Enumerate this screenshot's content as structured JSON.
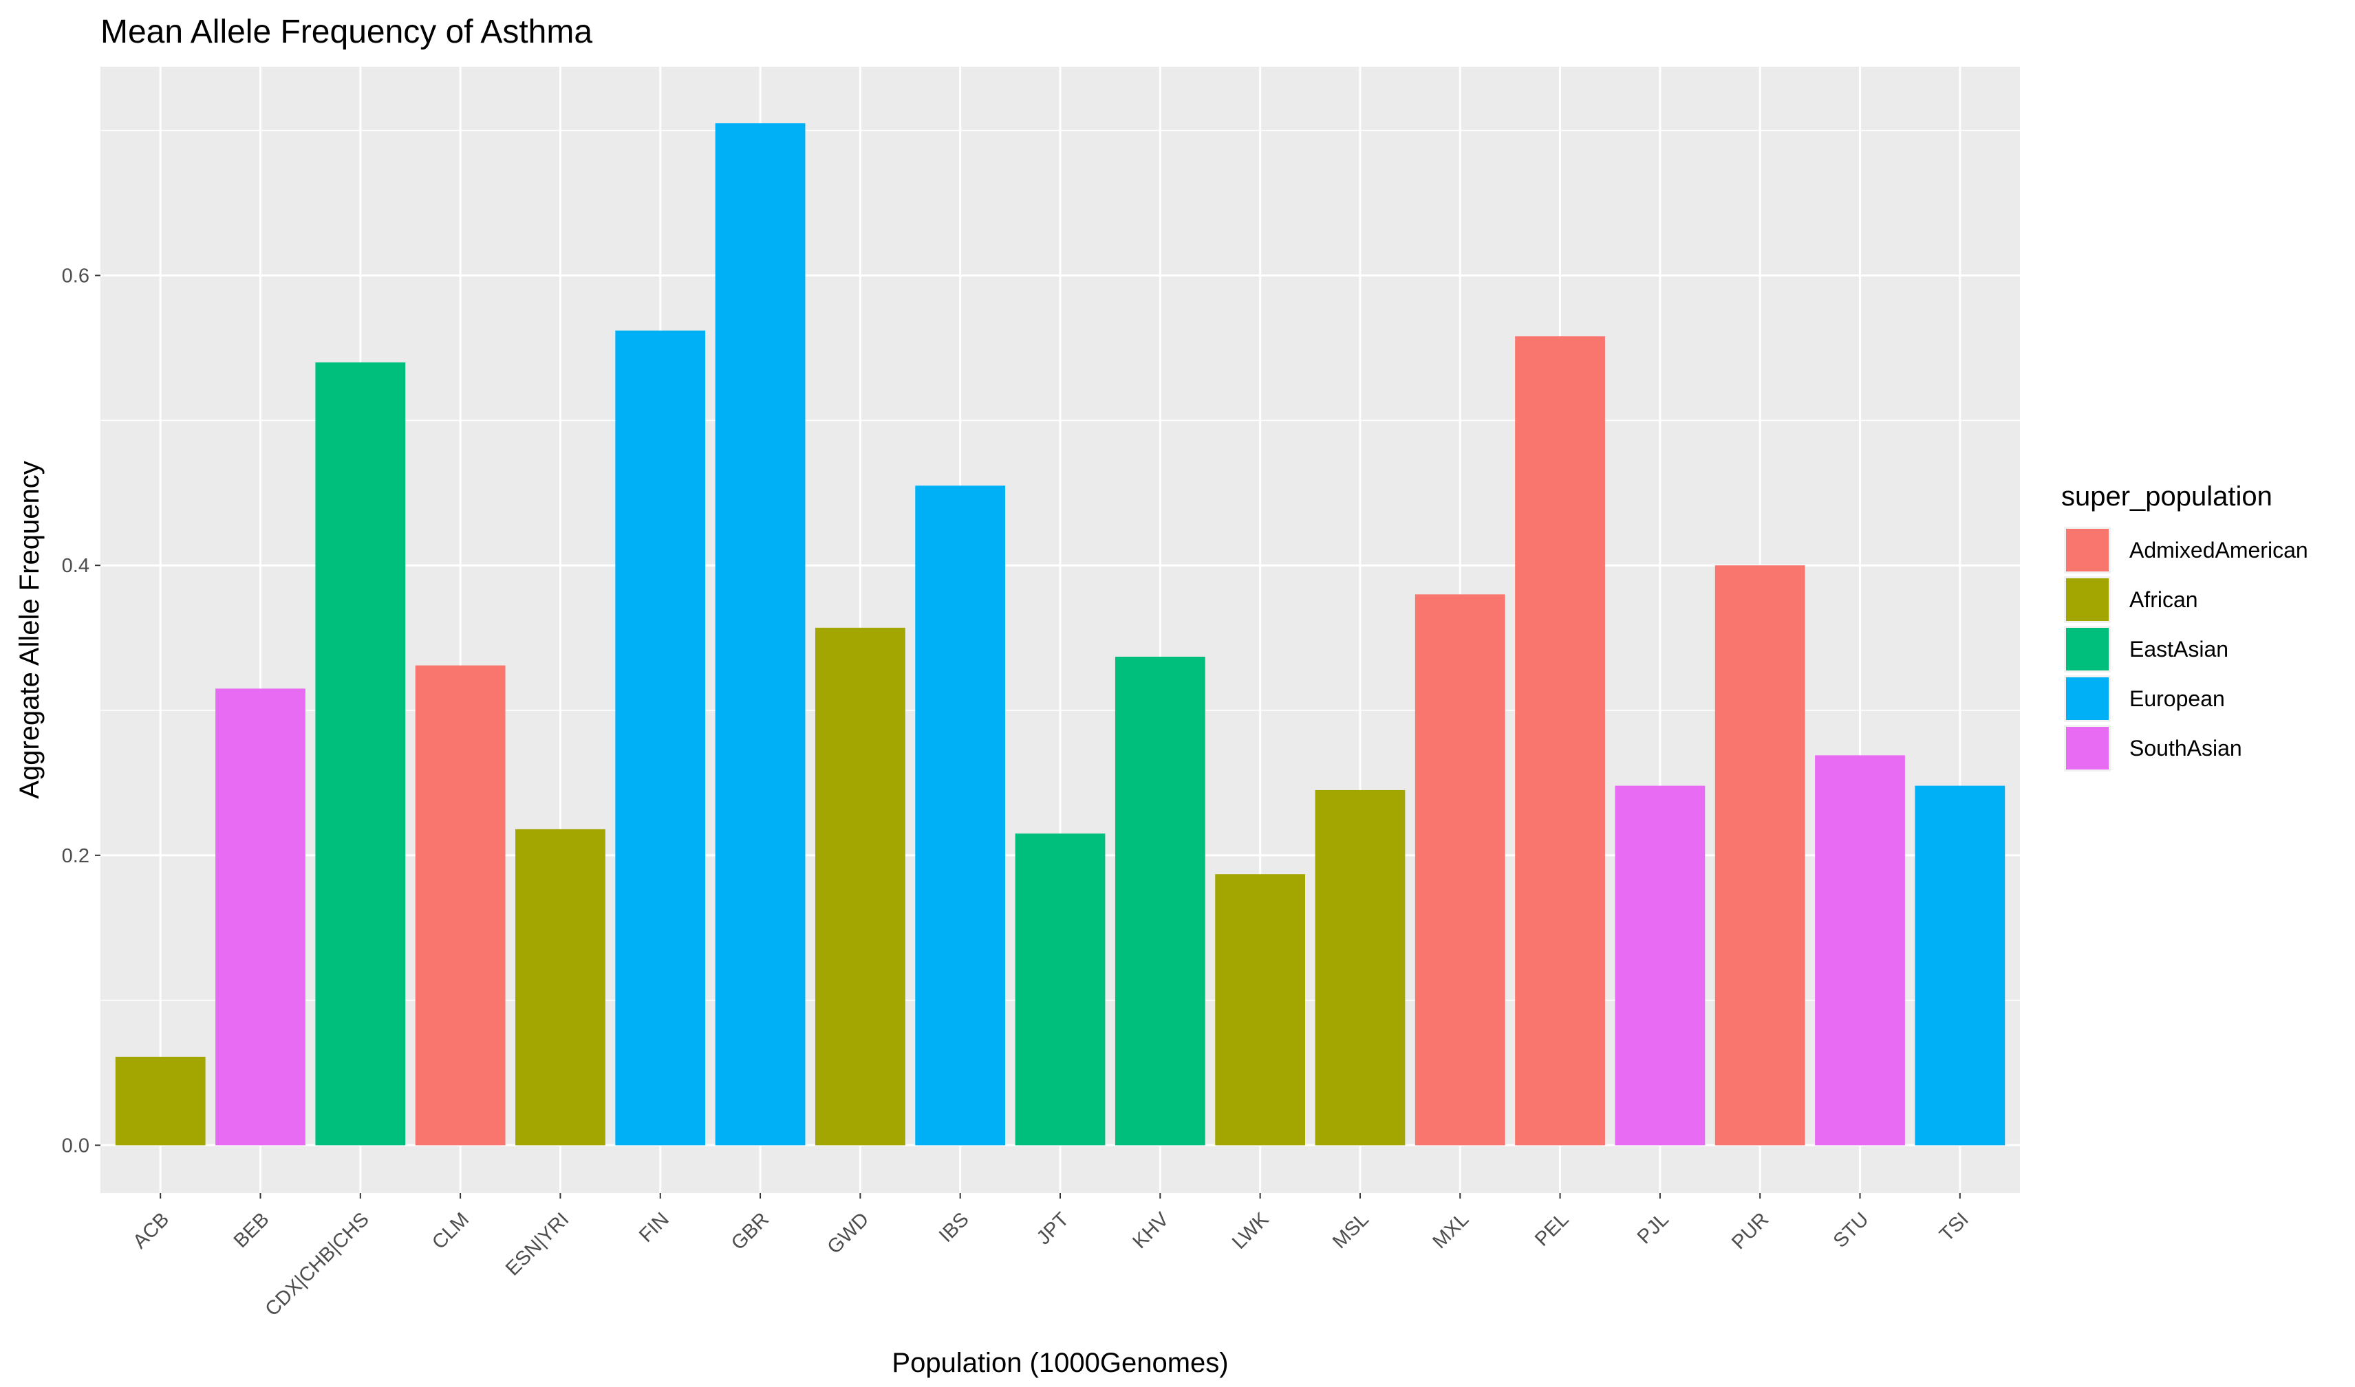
{
  "chart_data": {
    "type": "bar",
    "title": "Mean Allele Frequency of Asthma",
    "xlabel": "Population (1000Genomes)",
    "ylabel": "Aggregate Allele Frequency",
    "ylim": [
      -0.033,
      0.744
    ],
    "yticks": [
      0.0,
      0.2,
      0.4,
      0.6
    ],
    "ytick_labels": [
      "0.0",
      "0.2",
      "0.4",
      "0.6"
    ],
    "grid": true,
    "legend_position": "right",
    "legend_title": "super_population",
    "categories": [
      "ACB",
      "BEB",
      "CDX|CHB|CHS",
      "CLM",
      "ESN|YRI",
      "FIN",
      "GBR",
      "GWD",
      "IBS",
      "JPT",
      "KHV",
      "LWK",
      "MSL",
      "MXL",
      "PEL",
      "PJL",
      "PUR",
      "STU",
      "TSI"
    ],
    "values": [
      0.061,
      0.315,
      0.54,
      0.331,
      0.218,
      0.562,
      0.705,
      0.357,
      0.455,
      0.215,
      0.337,
      0.187,
      0.245,
      0.38,
      0.558,
      0.248,
      0.4,
      0.269,
      0.248
    ],
    "groups": [
      "African",
      "SouthAsian",
      "EastAsian",
      "AdmixedAmerican",
      "African",
      "European",
      "European",
      "African",
      "European",
      "EastAsian",
      "EastAsian",
      "African",
      "African",
      "AdmixedAmerican",
      "AdmixedAmerican",
      "SouthAsian",
      "AdmixedAmerican",
      "SouthAsian",
      "European"
    ],
    "legend": [
      {
        "name": "AdmixedAmerican",
        "color": "#F8766D"
      },
      {
        "name": "African",
        "color": "#A3A500"
      },
      {
        "name": "EastAsian",
        "color": "#00BF7D"
      },
      {
        "name": "European",
        "color": "#00B0F6"
      },
      {
        "name": "SouthAsian",
        "color": "#E76BF3"
      }
    ]
  }
}
